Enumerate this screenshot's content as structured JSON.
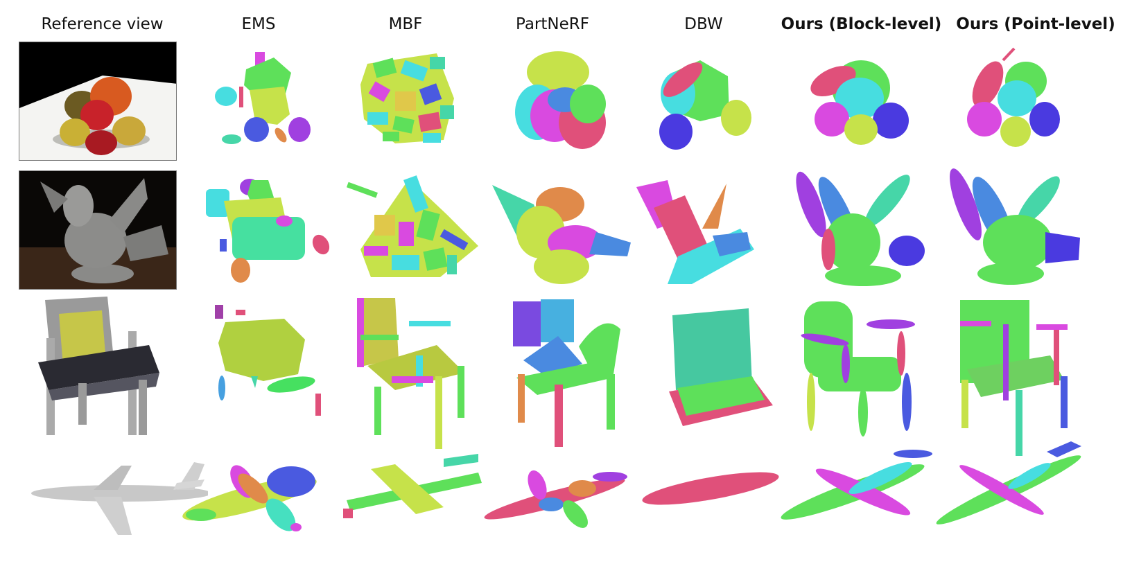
{
  "columns": [
    {
      "label": "Reference view",
      "bold": false
    },
    {
      "label": "EMS",
      "bold": false
    },
    {
      "label": "MBF",
      "bold": false
    },
    {
      "label": "PartNeRF",
      "bold": false
    },
    {
      "label": "DBW",
      "bold": false
    },
    {
      "label": "Ours (Block-level)",
      "bold": true
    },
    {
      "label": "Ours (Point-level)",
      "bold": true
    }
  ],
  "rows": [
    "fruits",
    "bird",
    "chair",
    "airplane"
  ],
  "palette": {
    "green": "#5ee05a",
    "cyan": "#47dde0",
    "magenta": "#d94ae0",
    "pink": "#e0507a",
    "blue": "#4a5ae0",
    "lime": "#c6e24a",
    "teal": "#46d6a8",
    "orange": "#e08a4a",
    "olive": "#b8c940"
  }
}
